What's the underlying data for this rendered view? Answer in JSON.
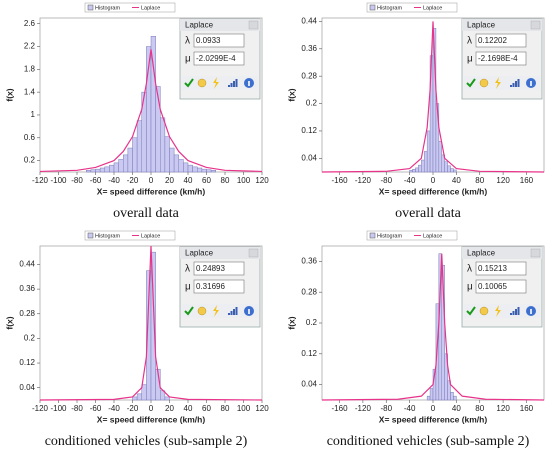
{
  "chart_data": [
    {
      "type": "histogram",
      "legend": [
        "Histogram",
        "Laplace"
      ],
      "xlabel": "X= speed difference (km/h)",
      "ylabel": "f(x)",
      "caption": "overall data",
      "xlim": [
        -120,
        120
      ],
      "xticks": [
        -120,
        -100,
        -80,
        -60,
        -40,
        -20,
        0,
        20,
        40,
        60,
        80,
        100,
        120
      ],
      "ylim": [
        0,
        2.7
      ],
      "yticks": [
        0.2,
        0.6,
        1,
        1.4,
        1.8,
        2.2,
        2.6
      ],
      "bins": [
        -70,
        -65,
        -60,
        -55,
        -50,
        -45,
        -40,
        -35,
        -30,
        -25,
        -20,
        -15,
        -10,
        -5,
        0,
        5,
        10,
        15,
        20,
        25,
        30,
        35,
        40,
        45,
        50,
        55,
        60,
        65,
        70
      ],
      "series": [
        {
          "name": "Histogram",
          "color": "#c9c9f2",
          "values": [
            0.03,
            0.04,
            0.05,
            0.07,
            0.09,
            0.12,
            0.16,
            0.22,
            0.3,
            0.42,
            0.6,
            0.9,
            1.4,
            2.2,
            2.38,
            1.5,
            0.95,
            0.62,
            0.42,
            0.3,
            0.22,
            0.16,
            0.12,
            0.09,
            0.07,
            0.05,
            0.04,
            0.03
          ]
        },
        {
          "name": "Laplace",
          "color": "#e8338a",
          "x": [
            -120,
            -80,
            -60,
            -40,
            -30,
            -20,
            -10,
            -5,
            0,
            5,
            10,
            20,
            30,
            40,
            60,
            80,
            120
          ],
          "values": [
            0.01,
            0.03,
            0.08,
            0.2,
            0.36,
            0.62,
            1.1,
            1.55,
            2.15,
            1.55,
            1.1,
            0.62,
            0.36,
            0.2,
            0.08,
            0.03,
            0.01
          ]
        }
      ],
      "dialog": {
        "title": "Laplace",
        "params": [
          {
            "symbol": "λ",
            "value": "0.0933"
          },
          {
            "symbol": "μ",
            "value": "-2.0299E-4"
          }
        ]
      }
    },
    {
      "type": "histogram",
      "legend": [
        "Histogram",
        "Laplace"
      ],
      "xlabel": "X= speed difference (km/h)",
      "ylabel": "f(x)",
      "caption": "overall data",
      "xlim": [
        -190,
        190
      ],
      "xticks": [
        -160,
        -120,
        -80,
        -40,
        0,
        40,
        80,
        120,
        160
      ],
      "ylim": [
        0,
        0.45
      ],
      "yticks": [
        0.04,
        0.12,
        0.2,
        0.28,
        0.36,
        0.44
      ],
      "bins": [
        -40,
        -35,
        -30,
        -25,
        -20,
        -15,
        -10,
        -5,
        0,
        5,
        10,
        15,
        20,
        25,
        30,
        35,
        40
      ],
      "series": [
        {
          "name": "Histogram",
          "color": "#c9c9f2",
          "values": [
            0.005,
            0.008,
            0.012,
            0.02,
            0.035,
            0.06,
            0.12,
            0.34,
            0.42,
            0.2,
            0.09,
            0.05,
            0.03,
            0.018,
            0.01,
            0.006
          ]
        },
        {
          "name": "Laplace",
          "color": "#e8338a",
          "x": [
            -190,
            -80,
            -40,
            -20,
            -10,
            -5,
            0,
            5,
            10,
            20,
            40,
            80,
            190
          ],
          "values": [
            0,
            0.002,
            0.01,
            0.04,
            0.13,
            0.24,
            0.44,
            0.24,
            0.13,
            0.04,
            0.01,
            0.002,
            0
          ]
        }
      ],
      "dialog": {
        "title": "Laplace",
        "params": [
          {
            "symbol": "λ",
            "value": "0.12202"
          },
          {
            "symbol": "μ",
            "value": "-2.1698E-4"
          }
        ]
      }
    },
    {
      "type": "histogram",
      "legend": [
        "Histogram",
        "Laplace"
      ],
      "xlabel": "X= speed difference (km/h)",
      "ylabel": "f(x)",
      "caption": "conditioned vehicles (sub-sample 2)",
      "xlim": [
        -120,
        120
      ],
      "xticks": [
        -120,
        -100,
        -80,
        -60,
        -40,
        -20,
        0,
        20,
        40,
        60,
        80,
        100,
        120
      ],
      "ylim": [
        0,
        0.5
      ],
      "yticks": [
        0.04,
        0.12,
        0.2,
        0.28,
        0.36,
        0.44
      ],
      "bins": [
        -20,
        -15,
        -10,
        -5,
        0,
        5,
        10,
        15,
        20
      ],
      "series": [
        {
          "name": "Histogram",
          "color": "#c9c9f2",
          "values": [
            0.01,
            0.02,
            0.05,
            0.42,
            0.48,
            0.1,
            0.03,
            0.01
          ]
        },
        {
          "name": "Laplace",
          "color": "#e8338a",
          "x": [
            -120,
            -40,
            -20,
            -10,
            -5,
            0,
            5,
            10,
            20,
            40,
            120
          ],
          "values": [
            0,
            0.002,
            0.01,
            0.04,
            0.14,
            0.5,
            0.14,
            0.04,
            0.01,
            0.002,
            0
          ]
        }
      ],
      "dialog": {
        "title": "Laplace",
        "params": [
          {
            "symbol": "λ",
            "value": "0.24893"
          },
          {
            "symbol": "μ",
            "value": "0.31696"
          }
        ]
      }
    },
    {
      "type": "histogram",
      "legend": [
        "Histogram",
        "Laplace"
      ],
      "xlabel": "X= speed difference (km/h)",
      "ylabel": "f(x)",
      "caption": "conditioned vehicles (sub-sample 2)",
      "xlim": [
        -190,
        190
      ],
      "xticks": [
        -160,
        -120,
        -80,
        -40,
        0,
        40,
        80,
        120,
        160
      ],
      "ylim": [
        0,
        0.4
      ],
      "yticks": [
        0.04,
        0.12,
        0.2,
        0.28,
        0.36
      ],
      "bins": [
        -10,
        -5,
        0,
        5,
        10,
        15,
        20,
        25,
        30,
        35,
        40
      ],
      "series": [
        {
          "name": "Histogram",
          "color": "#c9c9f2",
          "values": [
            0.01,
            0.03,
            0.08,
            0.25,
            0.38,
            0.35,
            0.12,
            0.05,
            0.02,
            0.01
          ]
        },
        {
          "name": "Laplace",
          "color": "#e8338a",
          "x": [
            -190,
            -60,
            -20,
            0,
            5,
            10,
            15,
            20,
            25,
            30,
            50,
            90,
            190
          ],
          "values": [
            0,
            0.002,
            0.01,
            0.04,
            0.09,
            0.2,
            0.38,
            0.2,
            0.09,
            0.04,
            0.01,
            0.002,
            0
          ]
        }
      ],
      "dialog": {
        "title": "Laplace",
        "params": [
          {
            "symbol": "λ",
            "value": "0.15213"
          },
          {
            "symbol": "μ",
            "value": "0.10065"
          }
        ]
      }
    }
  ]
}
